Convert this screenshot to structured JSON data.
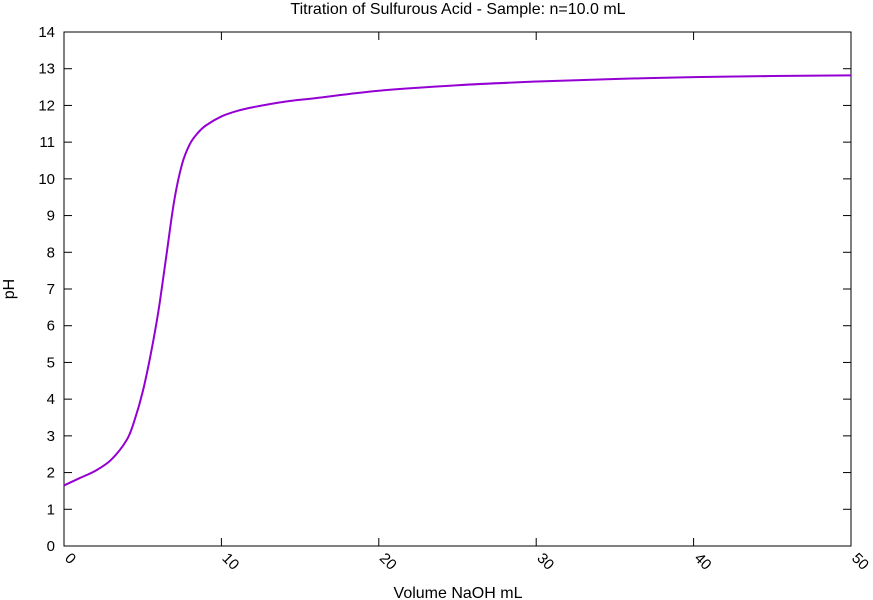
{
  "chart_data": {
    "type": "line",
    "title": "Titration of Sulfurous Acid - Sample: n=10.0 mL",
    "xlabel": "Volume NaOH mL",
    "ylabel": "pH",
    "xlim": [
      0,
      50
    ],
    "ylim": [
      0,
      14
    ],
    "x_ticks": [
      0,
      10,
      20,
      30,
      40,
      50
    ],
    "y_ticks": [
      0,
      1,
      2,
      3,
      4,
      5,
      6,
      7,
      8,
      9,
      10,
      11,
      12,
      13,
      14
    ],
    "x_tick_rotation_deg": 45,
    "grid": false,
    "legend": "none",
    "series": [
      {
        "color": "#9400d3",
        "x": [
          0,
          1,
          2,
          3,
          4,
          4.5,
          5,
          5.5,
          6,
          6.5,
          7,
          7.5,
          8,
          8.5,
          9,
          10,
          11,
          12,
          14,
          16,
          20,
          25,
          30,
          35,
          40,
          45,
          50
        ],
        "y": [
          1.65,
          1.85,
          2.05,
          2.35,
          2.9,
          3.45,
          4.2,
          5.2,
          6.4,
          7.9,
          9.4,
          10.4,
          10.95,
          11.25,
          11.45,
          11.7,
          11.85,
          11.95,
          12.1,
          12.2,
          12.4,
          12.55,
          12.65,
          12.72,
          12.77,
          12.8,
          12.82
        ]
      }
    ]
  }
}
